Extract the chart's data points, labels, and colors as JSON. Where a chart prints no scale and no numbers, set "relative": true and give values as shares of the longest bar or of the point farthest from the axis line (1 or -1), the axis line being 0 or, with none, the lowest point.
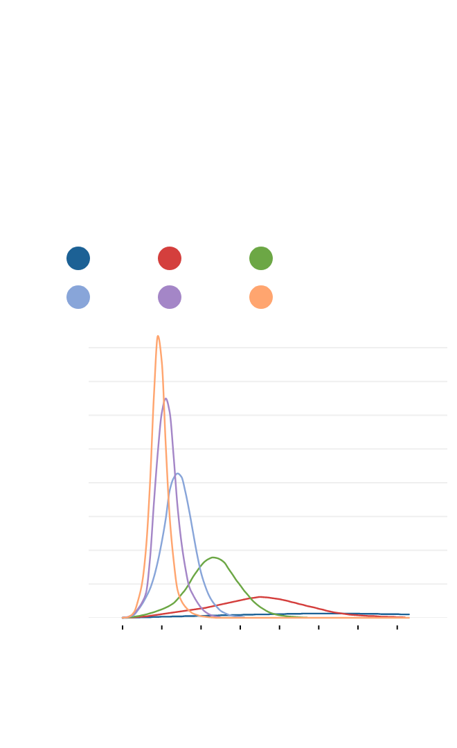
{
  "chart_data": {
    "type": "line",
    "relative": true,
    "grid": "y",
    "categories": [
      null,
      null,
      null,
      null,
      null,
      null,
      null,
      null,
      null,
      null,
      null,
      null,
      null,
      null,
      null,
      null,
      null,
      null,
      null,
      null,
      null,
      null,
      null,
      null,
      null,
      null,
      null,
      null,
      null,
      null,
      null,
      null,
      null,
      null,
      null,
      null,
      null,
      null,
      null,
      null,
      null,
      null,
      null,
      null,
      null,
      null,
      null,
      null,
      null,
      null,
      null,
      null,
      null,
      null,
      null,
      null,
      null,
      null,
      null,
      null,
      null,
      null,
      null,
      null,
      null,
      null,
      null,
      null,
      null,
      null,
      null,
      null,
      null,
      null
    ],
    "series": [
      {
        "color": "#1c6195",
        "values": [
          0,
          0,
          0.001,
          0.001,
          0.001,
          0.002,
          0.002,
          0.002,
          0.003,
          0.003,
          0.004,
          0.004,
          0.004,
          0.005,
          0.005,
          0.005,
          0.006,
          0.006,
          0.006,
          0.007,
          0.007,
          0.007,
          0.008,
          0.008,
          0.008,
          0.009,
          0.009,
          0.009,
          0.01,
          0.01,
          0.01,
          0.011,
          0.011,
          0.011,
          0.012,
          0.012,
          0.012,
          0.012,
          0.013,
          0.013,
          0.013,
          0.013,
          0.014,
          0.014,
          0.014,
          0.014,
          0.015,
          0.015,
          0.015,
          0.015,
          0.015,
          0.015,
          0.015,
          0.015,
          0.015,
          0.015,
          0.015,
          0.015,
          0.015,
          0.015,
          0.015,
          0.014,
          0.014,
          0.014,
          0.014,
          0.014,
          0.013,
          0.013,
          0.013,
          0.013,
          0.013,
          0.012,
          0.012,
          0.012
        ]
      },
      {
        "color": "#d43f3d",
        "values": [
          0,
          0.001,
          0.001,
          0.002,
          0.003,
          0.004,
          0.005,
          0.007,
          0.009,
          0.011,
          0.013,
          0.015,
          0.017,
          0.019,
          0.021,
          0.023,
          0.025,
          0.027,
          0.029,
          0.031,
          0.033,
          0.035,
          0.038,
          0.041,
          0.044,
          0.047,
          0.05,
          0.053,
          0.056,
          0.059,
          0.062,
          0.065,
          0.068,
          0.07,
          0.072,
          0.074,
          0.073,
          0.072,
          0.07,
          0.068,
          0.066,
          0.063,
          0.06,
          0.056,
          0.053,
          0.049,
          0.046,
          0.042,
          0.039,
          0.036,
          0.032,
          0.029,
          0.025,
          0.022,
          0.019,
          0.017,
          0.015,
          0.013,
          0.011,
          0.01,
          0.009,
          0.008,
          0.007,
          0.006,
          0.006,
          0.005,
          0.004,
          0.004,
          0.003,
          0.003,
          0.002,
          0.002,
          0.001,
          null
        ]
      },
      {
        "color": "#6ca745",
        "values": [
          0,
          0.001,
          0.002,
          0.004,
          0.006,
          0.009,
          0.012,
          0.016,
          0.02,
          0.025,
          0.03,
          0.036,
          0.043,
          0.052,
          0.066,
          0.083,
          0.1,
          0.122,
          0.146,
          0.166,
          0.185,
          0.2,
          0.209,
          0.214,
          0.212,
          0.206,
          0.195,
          0.174,
          0.154,
          0.133,
          0.115,
          0.096,
          0.08,
          0.063,
          0.05,
          0.039,
          0.03,
          0.022,
          0.016,
          0.012,
          0.009,
          0.007,
          0.005,
          0.004,
          0.003,
          0.002,
          0.001,
          0.001,
          null,
          null,
          null,
          null,
          null,
          null,
          null,
          null,
          null,
          null,
          null,
          null,
          null,
          null,
          null,
          null,
          null,
          null,
          null,
          null,
          null,
          null,
          null,
          null,
          null,
          null
        ]
      },
      {
        "color": "#88a5d9",
        "values": [
          0,
          0.001,
          0.005,
          0.012,
          0.029,
          0.049,
          0.074,
          0.103,
          0.145,
          0.201,
          0.27,
          0.351,
          0.451,
          0.495,
          0.512,
          0.5,
          0.447,
          0.378,
          0.3,
          0.224,
          0.16,
          0.115,
          0.08,
          0.056,
          0.039,
          0.025,
          0.017,
          0.011,
          0.007,
          0.005,
          0.004,
          0.002,
          null,
          null,
          null,
          null,
          null,
          null,
          null,
          null,
          null,
          null,
          null,
          null,
          null,
          null,
          null,
          null,
          null,
          null,
          null,
          null,
          null,
          null,
          null,
          null,
          null,
          null,
          null,
          null,
          null,
          null,
          null,
          null,
          null,
          null,
          null,
          null,
          null,
          null,
          null,
          null,
          null,
          null
        ]
      },
      {
        "color": "#a486c7",
        "values": [
          0,
          0.002,
          0.006,
          0.016,
          0.033,
          0.055,
          0.09,
          0.211,
          0.41,
          0.59,
          0.727,
          0.778,
          0.73,
          0.575,
          0.396,
          0.268,
          0.177,
          0.11,
          0.08,
          0.056,
          0.036,
          0.022,
          0.013,
          0.007,
          0.004,
          0.001,
          null,
          null,
          null,
          null,
          null,
          null,
          null,
          null,
          null,
          null,
          null,
          null,
          null,
          null,
          null,
          null,
          null,
          null,
          null,
          null,
          null,
          null,
          null,
          null,
          null,
          null,
          null,
          null,
          null,
          null,
          null,
          null,
          null,
          null,
          null,
          null,
          null,
          null,
          null,
          null,
          null,
          null,
          null,
          null,
          null,
          null,
          null,
          null
        ]
      },
      {
        "color": "#ffa56f",
        "values": [
          0,
          0.001,
          0.007,
          0.022,
          0.064,
          0.125,
          0.251,
          0.479,
          0.791,
          1,
          0.907,
          0.614,
          0.359,
          0.206,
          0.1,
          0.06,
          0.039,
          0.025,
          0.015,
          0.01,
          0.006,
          0.004,
          0.002,
          0.001,
          0,
          0,
          0,
          0,
          0,
          0,
          0,
          0,
          0,
          0,
          0,
          0,
          0,
          0,
          0,
          0,
          0,
          0,
          0,
          0,
          0,
          0,
          0,
          0,
          0,
          0,
          0,
          0,
          0,
          0,
          0,
          0,
          0,
          0,
          0,
          0,
          0,
          0,
          0,
          0,
          0,
          0,
          0,
          0,
          0,
          0,
          0,
          0,
          0,
          0
        ]
      }
    ]
  }
}
